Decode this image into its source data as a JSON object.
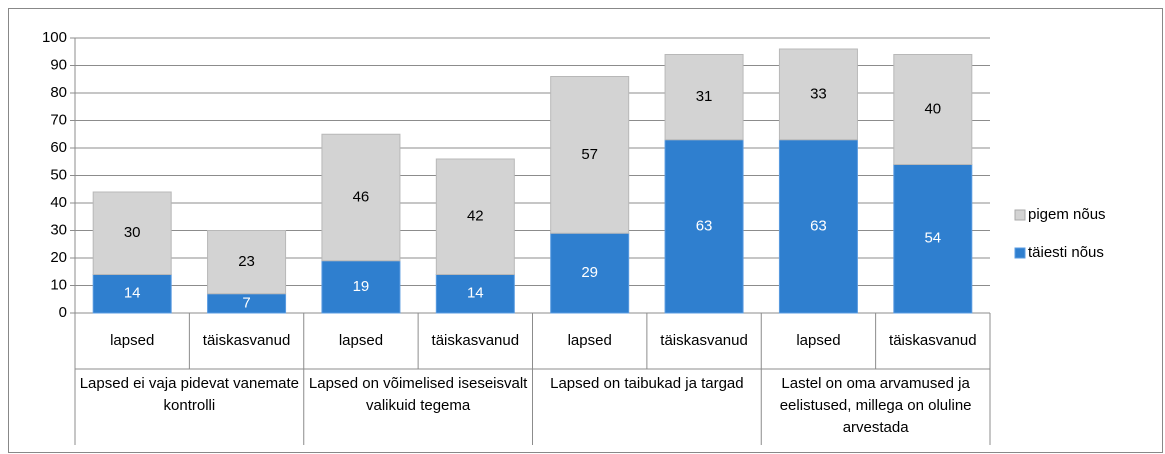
{
  "chart_data": {
    "type": "stacked_bar",
    "categories": [
      "lapsed",
      "täiskasvanud",
      "lapsed",
      "täiskasvanud",
      "lapsed",
      "täiskasvanud",
      "lapsed",
      "täiskasvanud"
    ],
    "groups": [
      "Lapsed ei vaja pidevat vanemate kontrolli",
      "Lapsed on võimelised iseseisvalt valikuid tegema",
      "Lapsed on taibukad ja targad",
      "Lastel on oma arvamused ja eelistused, millega on oluline arvestada"
    ],
    "series": [
      {
        "name": "täiesti nõus",
        "color": "#2f7fcf",
        "label_color": "#ffffff",
        "values": [
          14,
          7,
          19,
          14,
          29,
          63,
          63,
          54
        ]
      },
      {
        "name": "pigem nõus",
        "color": "#d3d3d3",
        "label_color": "#000000",
        "values": [
          30,
          23,
          46,
          42,
          57,
          31,
          33,
          40
        ]
      }
    ],
    "ylim": [
      0,
      100
    ],
    "yticks": [
      0,
      10,
      20,
      30,
      40,
      50,
      60,
      70,
      80,
      90,
      100
    ],
    "grid": true,
    "legend": "right"
  }
}
